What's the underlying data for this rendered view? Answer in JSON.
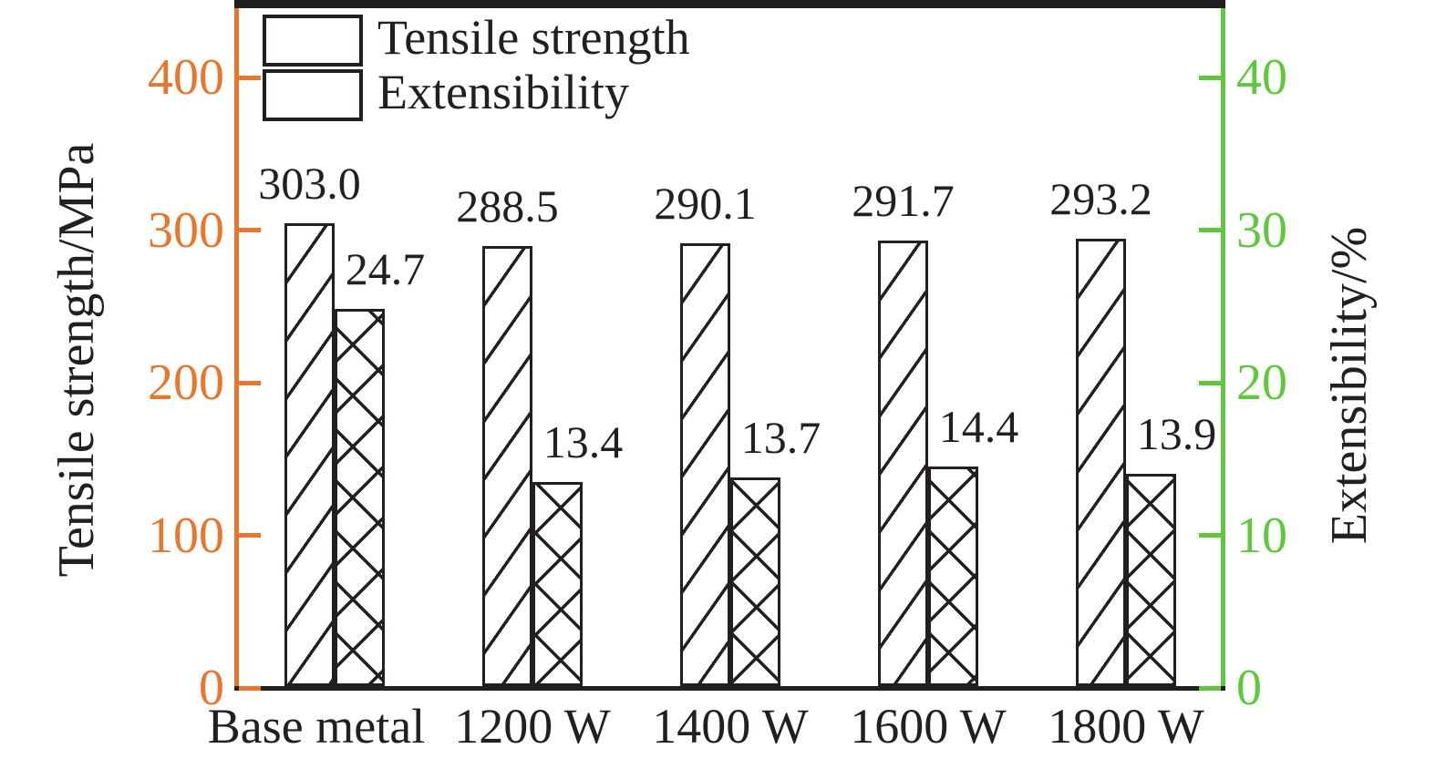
{
  "chart_data": {
    "type": "bar",
    "title": "",
    "categories": [
      "Base metal",
      "1200 W",
      "1400 W",
      "1600 W",
      "1800 W"
    ],
    "series": [
      {
        "name": "Tensile strength",
        "axis": "left",
        "hatch": "diagonal",
        "values": [
          303.0,
          288.5,
          290.1,
          291.7,
          293.2
        ],
        "value_labels": [
          "303.0",
          "288.5",
          "290.1",
          "291.7",
          "293.2"
        ]
      },
      {
        "name": "Extensibility",
        "axis": "right",
        "hatch": "crosshatch",
        "values": [
          24.7,
          13.4,
          13.7,
          14.4,
          13.9
        ],
        "value_labels": [
          "24.7",
          "13.4",
          "13.7",
          "14.4",
          "13.9"
        ]
      }
    ],
    "left_axis": {
      "title": "Tensile strength/MPa",
      "ticks": [
        0,
        100,
        200,
        300,
        400
      ],
      "tick_labels": [
        "0",
        "100",
        "200",
        "300",
        "400"
      ],
      "range": [
        0,
        446
      ],
      "color": "#E8762C"
    },
    "right_axis": {
      "title": "Extensibility/%",
      "ticks": [
        0,
        10,
        20,
        30,
        40
      ],
      "tick_labels": [
        "0",
        "10",
        "20",
        "30",
        "40"
      ],
      "range": [
        0,
        44.6
      ],
      "color": "#5FC83C"
    },
    "frame_color": "#231F20",
    "legend": {
      "position": "top-left",
      "entries": [
        "Tensile strength",
        "Extensibility"
      ]
    },
    "grid": false
  }
}
